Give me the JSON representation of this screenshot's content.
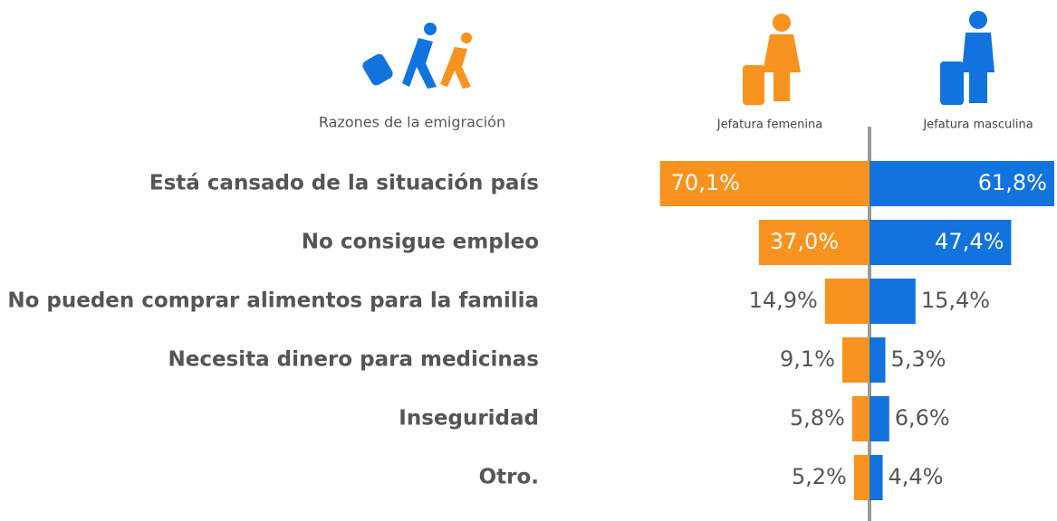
{
  "chart_data": {
    "type": "butterfly-bar",
    "category_header": "Razones de la emigración",
    "categories": [
      "Está cansado de la situación país",
      "No consigue empleo",
      "No pueden comprar alimentos para la familia",
      "Necesita dinero para medicinas",
      "Inseguridad",
      "Otro."
    ],
    "series": [
      {
        "name": "Jefatura femenina",
        "color": "#f7931e",
        "values": [
          70.1,
          37.0,
          14.9,
          9.1,
          5.8,
          5.2
        ],
        "value_labels": [
          "70,1%",
          "37,0%",
          "14,9%",
          "9,1%",
          "5,8%",
          "5,2%"
        ]
      },
      {
        "name": "Jefatura masculina",
        "color": "#1273de",
        "values": [
          61.8,
          47.4,
          15.4,
          5.3,
          6.6,
          4.4
        ],
        "value_labels": [
          "61,8%",
          "47,4%",
          "15,4%",
          "5,3%",
          "6,6%",
          "4,4%"
        ]
      }
    ]
  }
}
